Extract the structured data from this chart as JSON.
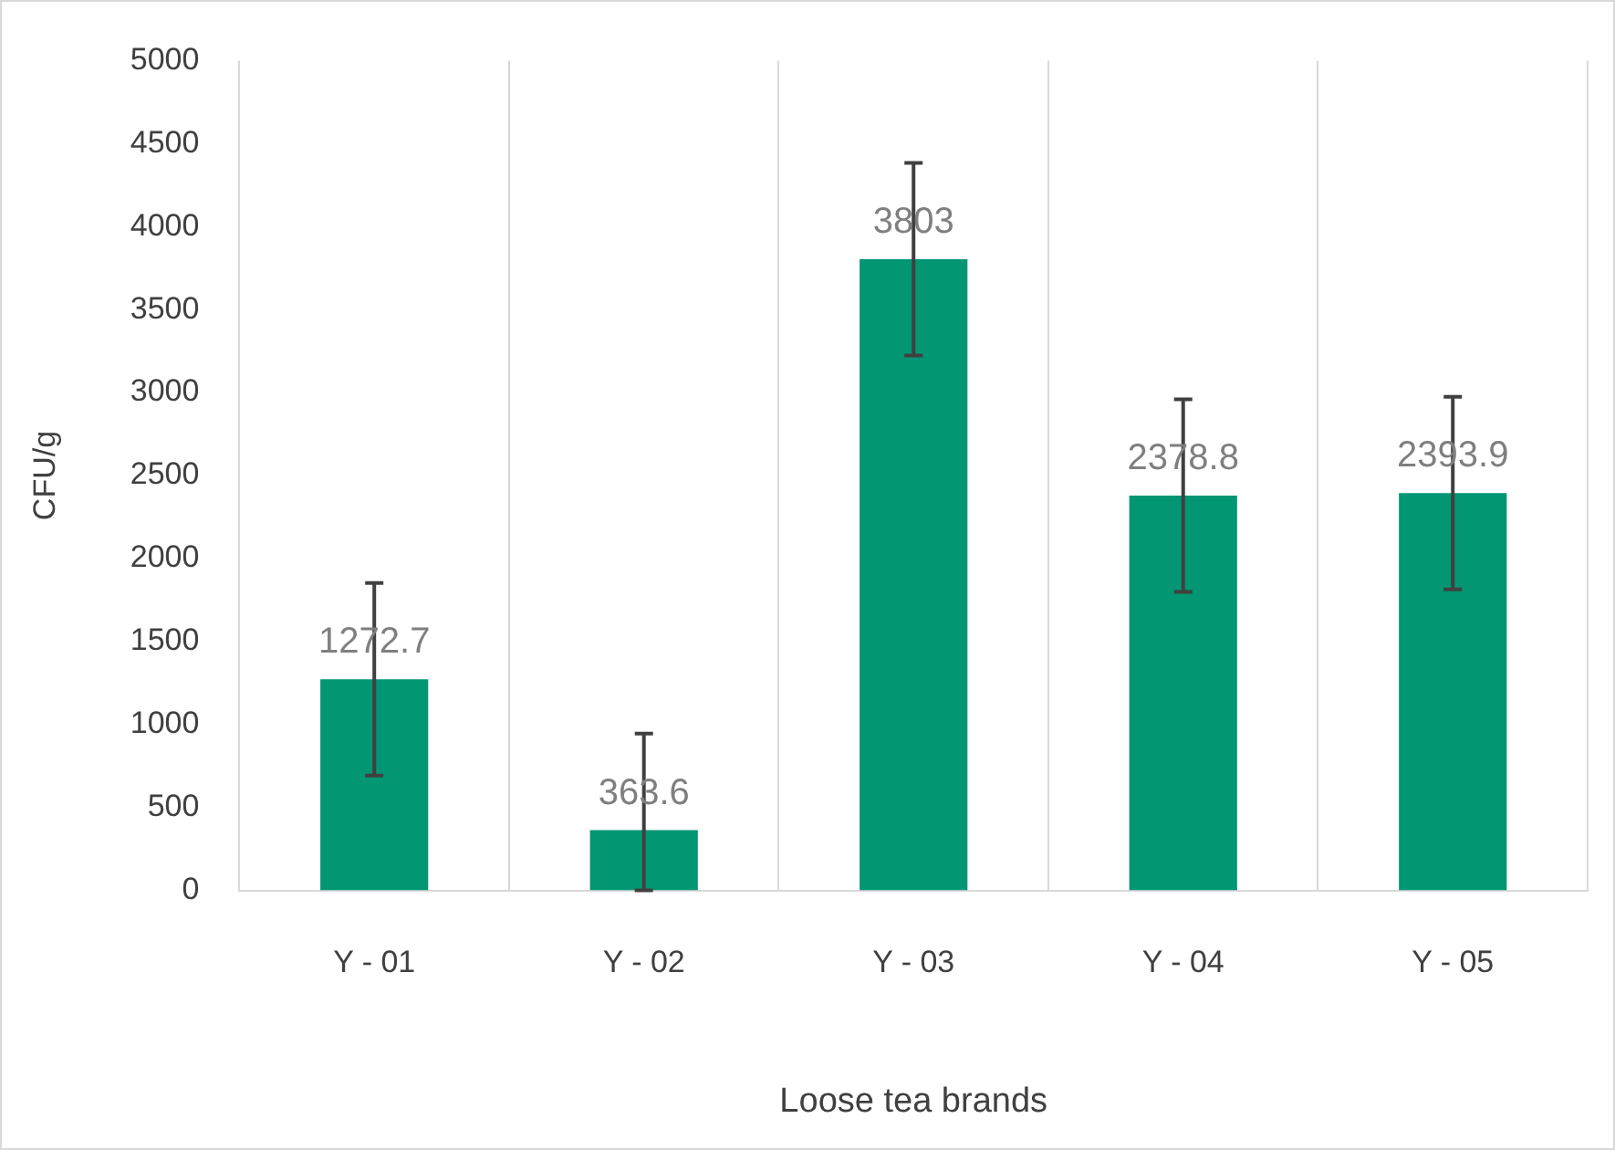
{
  "chart_data": {
    "type": "bar",
    "xlabel": "Loose tea brands",
    "ylabel": "CFU/g",
    "categories": [
      "Y - 01",
      "Y - 02",
      "Y - 03",
      "Y - 04",
      "Y - 05"
    ],
    "values": [
      1272.7,
      363.6,
      3803,
      2378.8,
      2393.9
    ],
    "errors": [
      580,
      [
        0,
        945
      ],
      580,
      580,
      580
    ],
    "color": "#029673",
    "ylim": [
      0,
      5000
    ],
    "yticks": [
      0,
      500,
      1000,
      1500,
      2000,
      2500,
      3000,
      3500,
      4000,
      4500,
      5000
    ],
    "grid": "x",
    "data_labels": true
  }
}
